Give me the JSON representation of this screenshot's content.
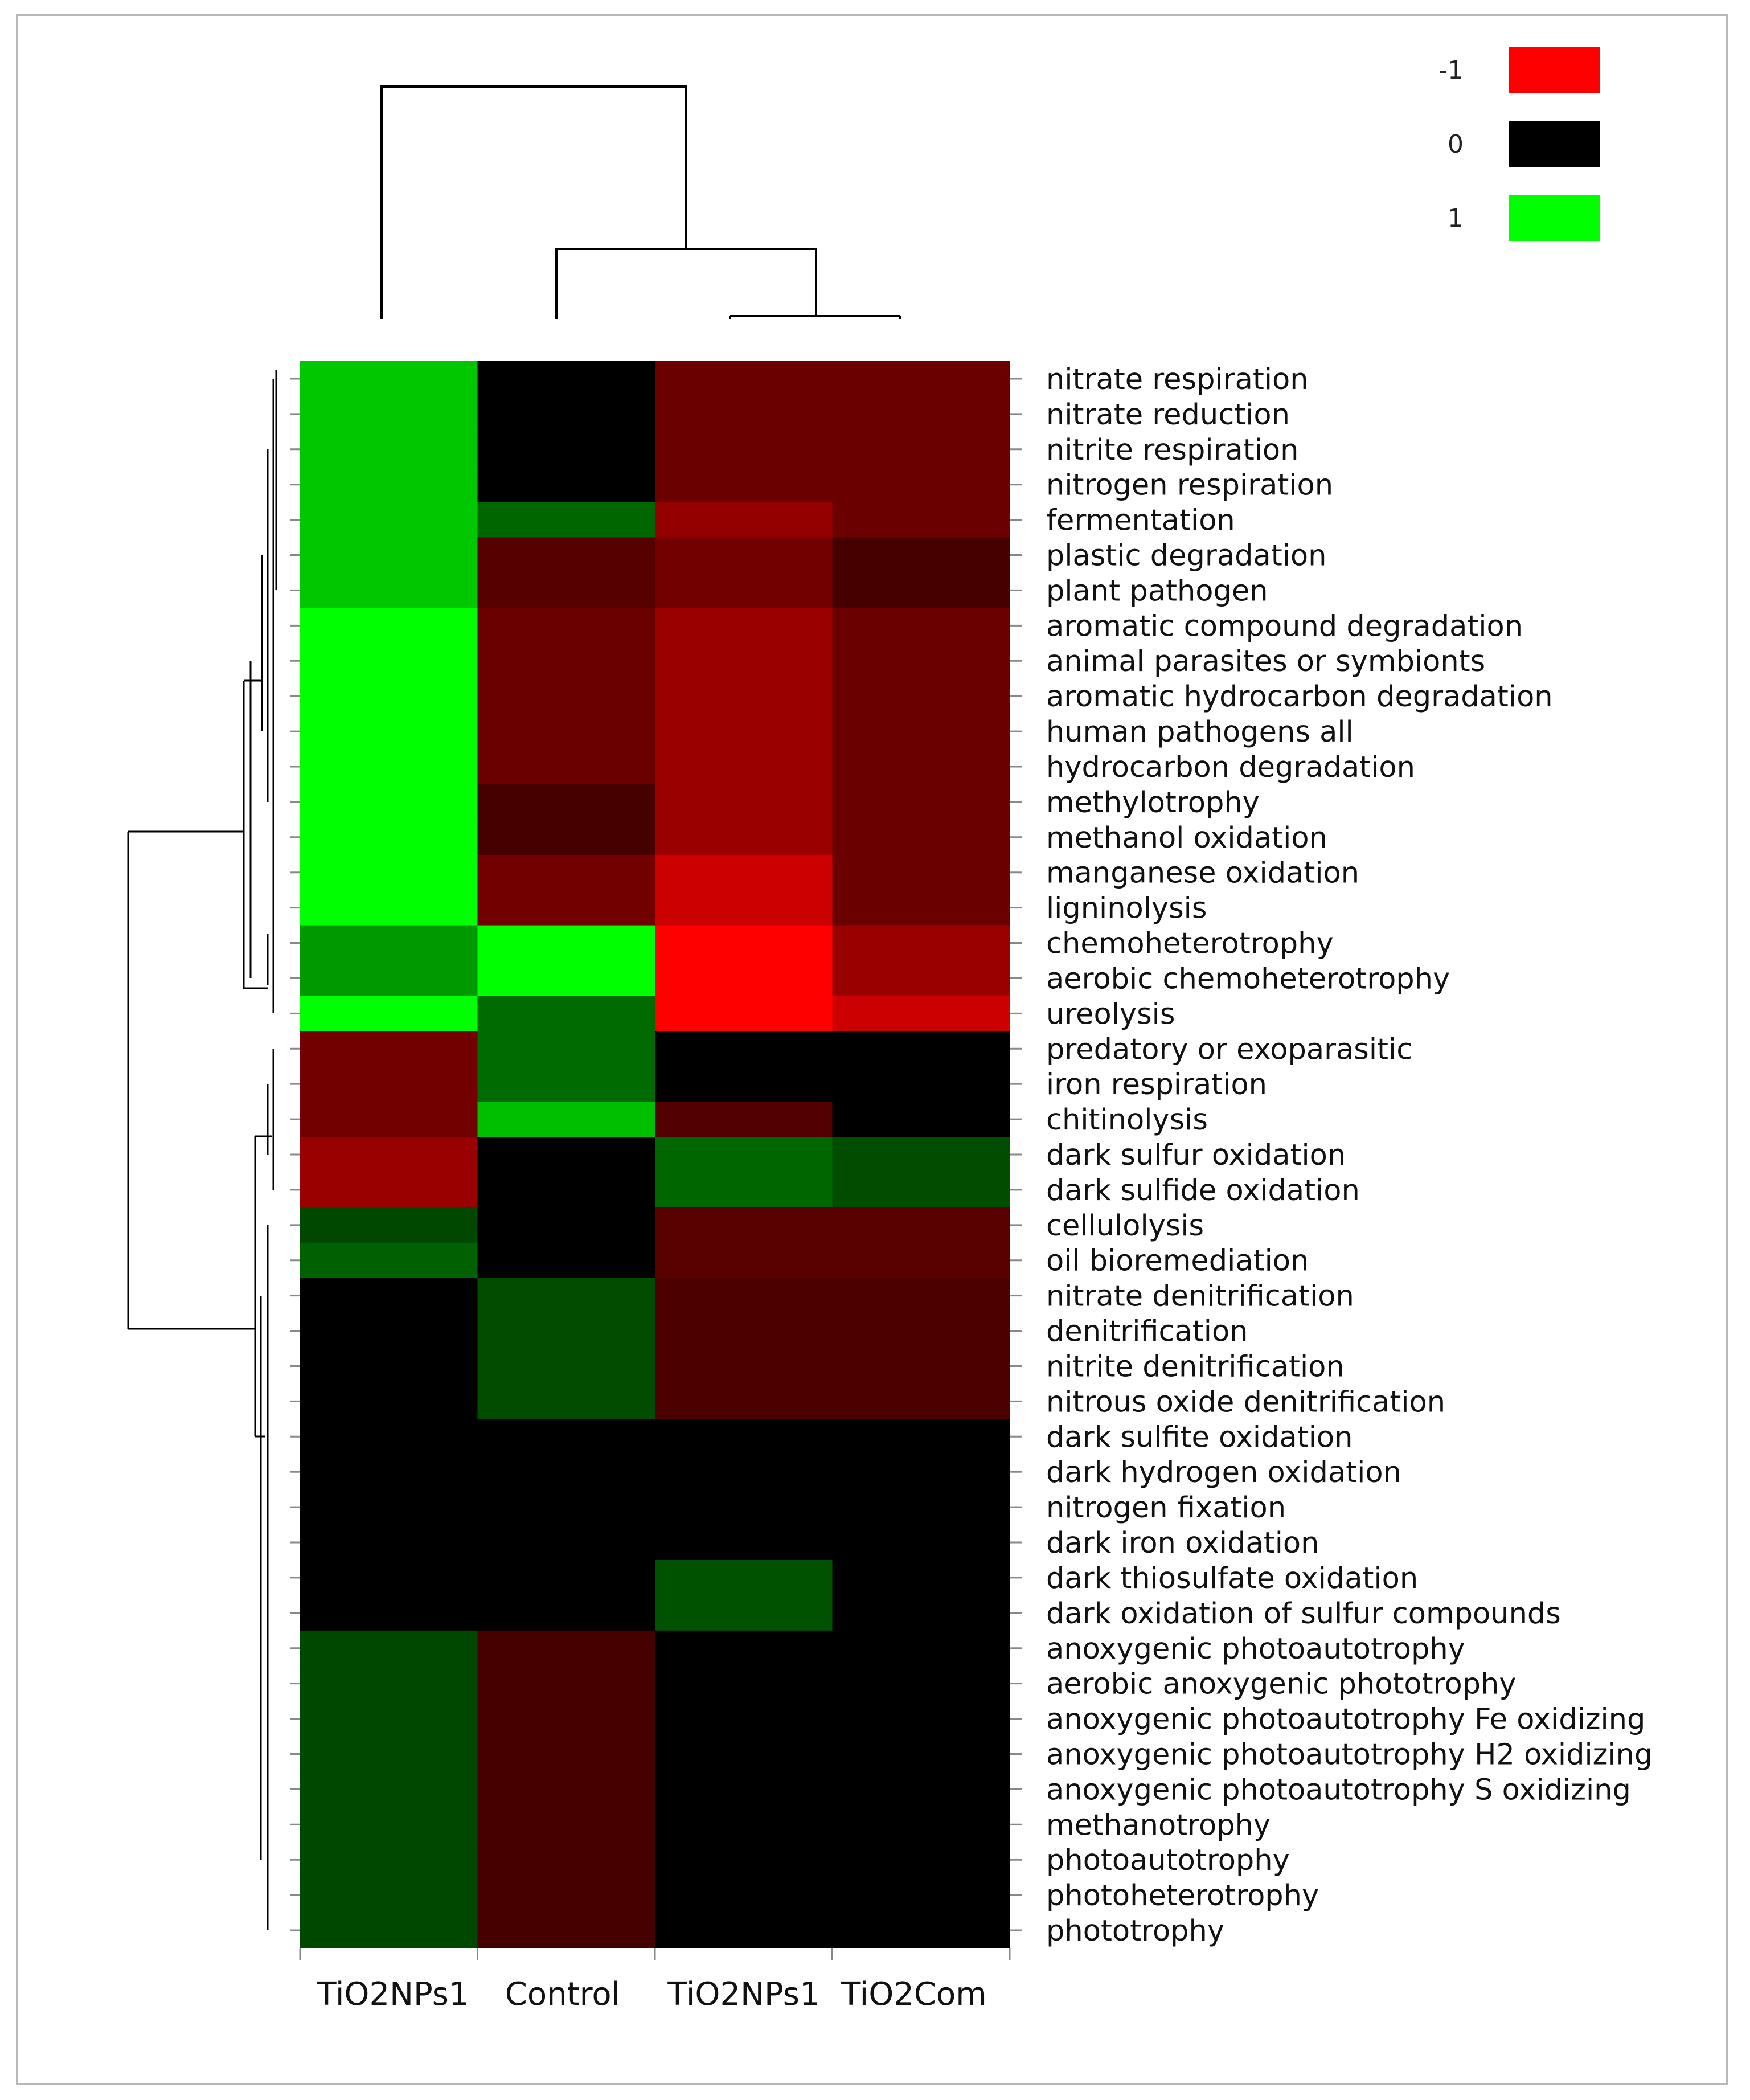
{
  "chart_data": {
    "type": "heatmap",
    "title": "",
    "columns": [
      "TiO2NPs1",
      "Control",
      "TiO2NPs1",
      "TiO2Com"
    ],
    "rows": [
      "nitrate respiration",
      "nitrate reduction",
      "nitrite respiration",
      "nitrogen respiration",
      "fermentation",
      "plastic degradation",
      "plant pathogen",
      "aromatic compound degradation",
      "animal parasites or symbionts",
      "aromatic hydrocarbon degradation",
      "human pathogens all",
      "hydrocarbon degradation",
      "methylotrophy",
      "methanol oxidation",
      "manganese oxidation",
      "ligninolysis",
      "chemoheterotrophy",
      "aerobic chemoheterotrophy",
      "ureolysis",
      "predatory or exoparasitic",
      "iron respiration",
      "chitinolysis",
      "dark sulfur oxidation",
      "dark sulfide oxidation",
      "cellulolysis",
      "oil bioremediation",
      "nitrate denitrification",
      "denitrification",
      "nitrite denitrification",
      "nitrous oxide denitrification",
      "dark sulfite oxidation",
      "dark hydrogen oxidation",
      "nitrogen fixation",
      "dark iron oxidation",
      "dark thiosulfate oxidation",
      "dark oxidation of sulfur compounds",
      "anoxygenic photoautotrophy",
      "aerobic anoxygenic phototrophy",
      "anoxygenic photoautotrophy Fe oxidizing",
      "anoxygenic photoautotrophy H2 oxidizing",
      "anoxygenic photoautotrophy S oxidizing",
      "methanotrophy",
      "photoautotrophy",
      "photoheterotrophy",
      "phototrophy"
    ],
    "values": [
      [
        0.78,
        0.0,
        -0.42,
        -0.42
      ],
      [
        0.78,
        0.0,
        -0.42,
        -0.42
      ],
      [
        0.78,
        0.0,
        -0.42,
        -0.42
      ],
      [
        0.78,
        0.0,
        -0.42,
        -0.42
      ],
      [
        0.78,
        0.4,
        -0.58,
        -0.42
      ],
      [
        0.78,
        -0.34,
        -0.45,
        -0.28
      ],
      [
        0.78,
        -0.34,
        -0.45,
        -0.28
      ],
      [
        1.0,
        -0.42,
        -0.6,
        -0.42
      ],
      [
        1.0,
        -0.42,
        -0.6,
        -0.42
      ],
      [
        1.0,
        -0.42,
        -0.6,
        -0.42
      ],
      [
        1.0,
        -0.42,
        -0.6,
        -0.42
      ],
      [
        1.0,
        -0.42,
        -0.6,
        -0.42
      ],
      [
        1.0,
        -0.28,
        -0.6,
        -0.42
      ],
      [
        1.0,
        -0.28,
        -0.6,
        -0.42
      ],
      [
        1.0,
        -0.45,
        -0.8,
        -0.42
      ],
      [
        1.0,
        -0.45,
        -0.8,
        -0.42
      ],
      [
        0.6,
        1.0,
        -1.0,
        -0.6
      ],
      [
        0.6,
        1.0,
        -1.0,
        -0.6
      ],
      [
        1.0,
        0.42,
        -1.0,
        -0.8
      ],
      [
        -0.45,
        0.42,
        0.0,
        0.0
      ],
      [
        -0.45,
        0.42,
        0.0,
        0.0
      ],
      [
        -0.45,
        0.75,
        -0.32,
        0.0
      ],
      [
        -0.6,
        0.0,
        0.4,
        0.3
      ],
      [
        -0.6,
        0.0,
        0.4,
        0.3
      ],
      [
        0.28,
        0.0,
        -0.35,
        -0.35
      ],
      [
        0.38,
        0.0,
        -0.35,
        -0.35
      ],
      [
        0.0,
        0.3,
        -0.3,
        -0.3
      ],
      [
        0.0,
        0.3,
        -0.3,
        -0.3
      ],
      [
        0.0,
        0.3,
        -0.3,
        -0.3
      ],
      [
        0.0,
        0.3,
        -0.3,
        -0.3
      ],
      [
        0.0,
        0.0,
        0.0,
        0.0
      ],
      [
        0.0,
        0.0,
        0.0,
        0.0
      ],
      [
        0.0,
        0.0,
        0.0,
        0.0
      ],
      [
        0.0,
        0.0,
        0.0,
        0.0
      ],
      [
        0.0,
        0.0,
        0.32,
        0.0
      ],
      [
        0.0,
        0.0,
        0.32,
        0.0
      ],
      [
        0.28,
        -0.28,
        0.0,
        0.0
      ],
      [
        0.28,
        -0.28,
        0.0,
        0.0
      ],
      [
        0.28,
        -0.28,
        0.0,
        0.0
      ],
      [
        0.28,
        -0.28,
        0.0,
        0.0
      ],
      [
        0.28,
        -0.28,
        0.0,
        0.0
      ],
      [
        0.28,
        -0.28,
        0.0,
        0.0
      ],
      [
        0.28,
        -0.28,
        0.0,
        0.0
      ],
      [
        0.28,
        -0.28,
        0.0,
        0.0
      ],
      [
        0.28,
        -0.28,
        0.0,
        0.0
      ]
    ],
    "legend": [
      {
        "label": "-1",
        "value": -1,
        "color": "#ff0000"
      },
      {
        "label": "0",
        "value": 0,
        "color": "#000000"
      },
      {
        "label": "1",
        "value": 1,
        "color": "#00ff00"
      }
    ],
    "color_scale": {
      "min": -1,
      "mid": 0,
      "max": 1,
      "low": "#ff0000",
      "midColor": "#000000",
      "high": "#00ff00"
    },
    "legend_position": "top-right",
    "column_dendrogram": true,
    "row_dendrogram": true,
    "grid": false
  }
}
